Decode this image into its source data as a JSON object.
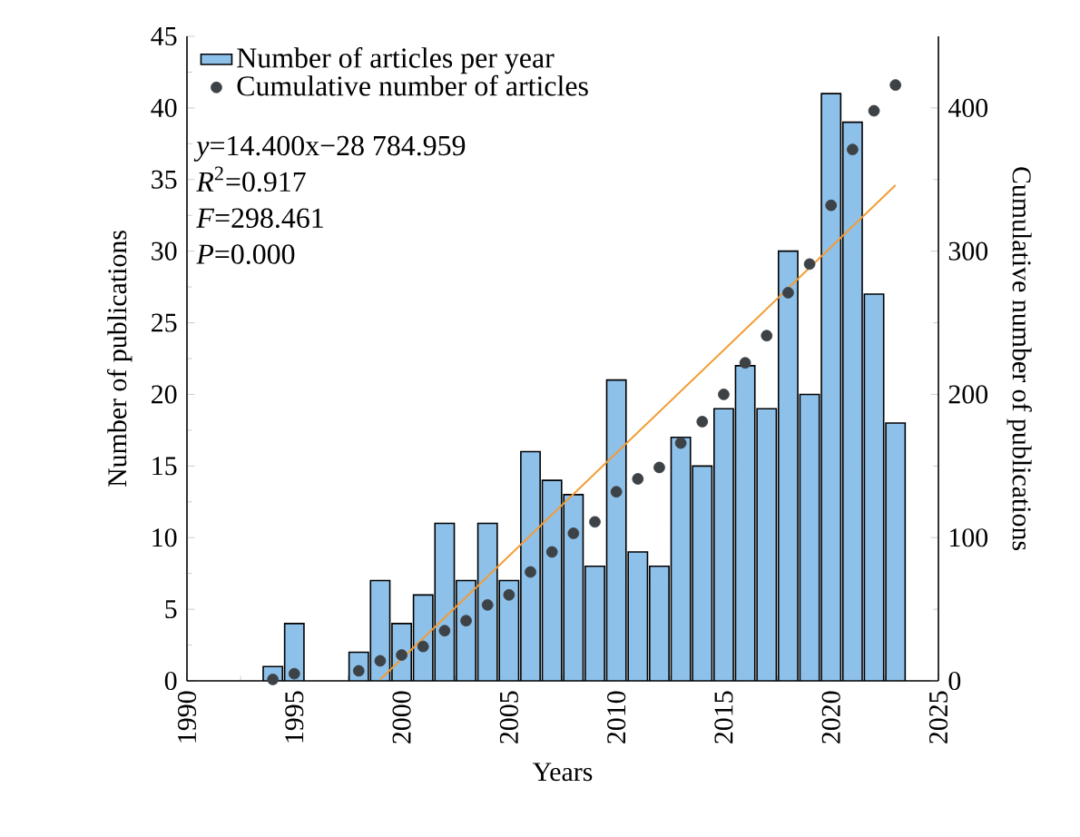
{
  "chart_data": {
    "type": "bar",
    "xlabel": "Years",
    "ylabel": "Number of publications",
    "y2label": "Cumulative number of publications",
    "x": [
      1994,
      1995,
      1998,
      1999,
      2000,
      2001,
      2002,
      2003,
      2004,
      2005,
      2006,
      2007,
      2008,
      2009,
      2010,
      2011,
      2012,
      2013,
      2014,
      2015,
      2016,
      2017,
      2018,
      2019,
      2020,
      2021,
      2022,
      2023
    ],
    "series": [
      {
        "name": "Number of articles per year",
        "color": "#8ec1ea",
        "values": [
          1,
          4,
          2,
          7,
          4,
          6,
          11,
          7,
          11,
          7,
          16,
          14,
          13,
          8,
          21,
          9,
          8,
          17,
          15,
          19,
          22,
          19,
          30,
          20,
          41,
          39,
          27,
          18
        ]
      },
      {
        "name": "Cumulative number of articles",
        "type": "scatter",
        "axis": "y2",
        "color": "#3d4247",
        "values": [
          1,
          5,
          7,
          14,
          18,
          24,
          35,
          42,
          53,
          60,
          76,
          90,
          103,
          111,
          132,
          141,
          149,
          166,
          181,
          200,
          222,
          241,
          271,
          291,
          332,
          371,
          398,
          416
        ]
      },
      {
        "type": "line",
        "axis": "y2",
        "marker": "none",
        "color": "#f39c33",
        "x": [
          1999,
          2023
        ],
        "values": [
          1,
          346
        ]
      }
    ],
    "xlim": [
      1990,
      2025
    ],
    "xticks": [
      1990,
      1995,
      2000,
      2005,
      2010,
      2015,
      2020,
      2025
    ],
    "ylim": [
      0,
      45
    ],
    "yticks": [
      0,
      5,
      10,
      15,
      20,
      25,
      30,
      35,
      40,
      45
    ],
    "y2lim": [
      0,
      450
    ],
    "y2ticks": [
      0,
      100,
      200,
      300,
      400
    ],
    "legend": "top left",
    "marker": "circle",
    "annotations": [
      "*y*=14.400x−28 784.959",
      "*R*$^{2}$=0.917",
      "*F*=298.461",
      "*P*=0.000"
    ]
  }
}
